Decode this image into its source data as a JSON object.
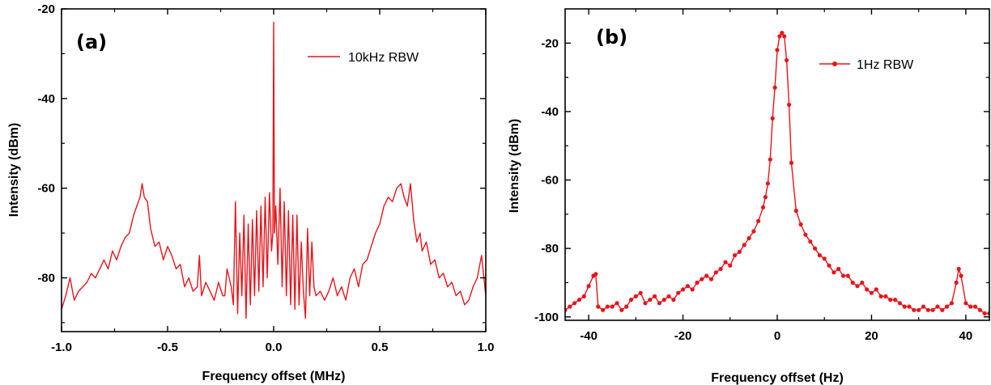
{
  "chart_data": [
    {
      "type": "line",
      "panel_label": "(a)",
      "xlabel": "Frequency offset (MHz)",
      "ylabel": "Intensity (dBm)",
      "xlim": [
        -1.0,
        1.0
      ],
      "ylim": [
        -92,
        -20
      ],
      "xticks": [
        -1.0,
        -0.5,
        0.0,
        0.5,
        1.0
      ],
      "xtick_labels": [
        "-1.0",
        "-0.5",
        "0.0",
        "0.5",
        "1.0"
      ],
      "yticks": [
        -80,
        -60,
        -40,
        -20
      ],
      "ytick_labels": [
        "-80",
        "-60",
        "-40",
        "-20"
      ],
      "grid": false,
      "legend_position": "top-right",
      "color": "#e8141b",
      "series": [
        {
          "name": "10kHz RBW",
          "markers": false,
          "x": [
            -1.0,
            -0.98,
            -0.96,
            -0.94,
            -0.92,
            -0.9,
            -0.88,
            -0.86,
            -0.84,
            -0.82,
            -0.8,
            -0.78,
            -0.76,
            -0.74,
            -0.72,
            -0.7,
            -0.68,
            -0.66,
            -0.645,
            -0.63,
            -0.62,
            -0.61,
            -0.595,
            -0.58,
            -0.56,
            -0.54,
            -0.52,
            -0.5,
            -0.48,
            -0.46,
            -0.44,
            -0.42,
            -0.4,
            -0.38,
            -0.36,
            -0.35,
            -0.34,
            -0.32,
            -0.3,
            -0.28,
            -0.26,
            -0.24,
            -0.23,
            -0.22,
            -0.2,
            -0.19,
            -0.18,
            -0.17,
            -0.16,
            -0.15,
            -0.14,
            -0.13,
            -0.12,
            -0.11,
            -0.1,
            -0.09,
            -0.08,
            -0.07,
            -0.06,
            -0.05,
            -0.04,
            -0.03,
            -0.02,
            -0.01,
            -0.004,
            0.0,
            0.004,
            0.01,
            0.02,
            0.03,
            0.04,
            0.05,
            0.06,
            0.07,
            0.08,
            0.09,
            0.1,
            0.11,
            0.12,
            0.13,
            0.14,
            0.15,
            0.16,
            0.17,
            0.18,
            0.19,
            0.2,
            0.22,
            0.24,
            0.26,
            0.28,
            0.3,
            0.32,
            0.34,
            0.36,
            0.38,
            0.4,
            0.42,
            0.44,
            0.46,
            0.48,
            0.5,
            0.52,
            0.54,
            0.56,
            0.58,
            0.6,
            0.615,
            0.63,
            0.645,
            0.66,
            0.675,
            0.69,
            0.7,
            0.72,
            0.74,
            0.76,
            0.78,
            0.8,
            0.82,
            0.84,
            0.86,
            0.88,
            0.9,
            0.92,
            0.94,
            0.96,
            0.98,
            1.0
          ],
          "y": [
            -87,
            -84,
            -80,
            -85,
            -83,
            -82,
            -81,
            -79,
            -80,
            -78,
            -76,
            -78,
            -74,
            -76,
            -73,
            -71,
            -70,
            -66,
            -64,
            -62,
            -59,
            -62,
            -63,
            -69,
            -73,
            -72,
            -76,
            -73,
            -75,
            -78,
            -77,
            -82,
            -80,
            -83,
            -82,
            -75,
            -84,
            -81,
            -83,
            -85,
            -81,
            -84,
            -84,
            -78,
            -82,
            -86,
            -63,
            -88,
            -70,
            -84,
            -66,
            -89,
            -68,
            -86,
            -67,
            -84,
            -65,
            -83,
            -64,
            -82,
            -62,
            -80,
            -61,
            -74,
            -70,
            -23,
            -70,
            -64,
            -77,
            -60,
            -82,
            -63,
            -84,
            -65,
            -86,
            -66,
            -87,
            -66,
            -86,
            -72,
            -83,
            -89,
            -69,
            -84,
            -72,
            -82,
            -84,
            -83,
            -85,
            -83,
            -80,
            -84,
            -82,
            -85,
            -80,
            -78,
            -82,
            -77,
            -76,
            -73,
            -70,
            -68,
            -64,
            -62,
            -63,
            -60,
            -59,
            -62,
            -64,
            -59,
            -67,
            -72,
            -70,
            -74,
            -72,
            -77,
            -76,
            -80,
            -79,
            -82,
            -81,
            -84,
            -83,
            -86,
            -85,
            -82,
            -80,
            -75,
            -84
          ]
        }
      ]
    },
    {
      "type": "line",
      "panel_label": "(b)",
      "xlabel": "Frequency offset (Hz)",
      "ylabel": "Intensity (dBm)",
      "xlim": [
        -45,
        45
      ],
      "ylim": [
        -101,
        -10
      ],
      "xticks": [
        -40,
        -20,
        0,
        20,
        40
      ],
      "xtick_labels": [
        "-40",
        "-20",
        "0",
        "20",
        "40"
      ],
      "yticks": [
        -100,
        -80,
        -60,
        -40,
        -20
      ],
      "ytick_labels": [
        "-100",
        "-80",
        "-60",
        "-40",
        "-20"
      ],
      "grid": false,
      "legend_position": "top-right",
      "color": "#e8141b",
      "series": [
        {
          "name": "1Hz RBW",
          "markers": true,
          "x": [
            -45,
            -44,
            -43,
            -42,
            -41,
            -40,
            -39,
            -38.5,
            -38,
            -37,
            -36,
            -35,
            -34,
            -33,
            -32,
            -31,
            -30,
            -29,
            -28,
            -27,
            -26,
            -25,
            -24,
            -23,
            -22,
            -21,
            -20,
            -19,
            -18,
            -17,
            -16,
            -15,
            -14,
            -13,
            -12,
            -11,
            -10,
            -9,
            -8,
            -7,
            -6,
            -5,
            -4,
            -3,
            -2.5,
            -2,
            -1.5,
            -1,
            -0.5,
            0,
            0.5,
            1,
            1.5,
            2,
            2.5,
            3,
            4,
            5,
            6,
            7,
            8,
            9,
            10,
            11,
            12,
            13,
            14,
            15,
            16,
            17,
            18,
            19,
            20,
            21,
            22,
            23,
            24,
            25,
            26,
            27,
            28,
            29,
            30,
            31,
            32,
            33,
            34,
            35,
            36,
            37,
            38,
            38.5,
            39,
            40,
            41,
            42,
            43,
            44,
            45
          ],
          "y": [
            -98,
            -97,
            -96,
            -95,
            -94,
            -91,
            -88,
            -87.5,
            -97,
            -98,
            -97,
            -97,
            -96,
            -98,
            -97,
            -95,
            -94,
            -93,
            -96,
            -95,
            -94,
            -96,
            -95,
            -94,
            -95,
            -93,
            -92,
            -91,
            -92,
            -90,
            -89,
            -88,
            -89,
            -87,
            -86,
            -84,
            -85,
            -82,
            -81,
            -79,
            -77,
            -75,
            -72,
            -68,
            -65,
            -61,
            -54,
            -42,
            -33,
            -22,
            -18,
            -17,
            -18,
            -25,
            -38,
            -55,
            -69,
            -73,
            -76,
            -78,
            -80,
            -82,
            -83,
            -85,
            -87,
            -86,
            -88,
            -88,
            -90,
            -91,
            -90,
            -92,
            -93,
            -92,
            -94,
            -94,
            -95,
            -95,
            -96,
            -97,
            -97,
            -98,
            -98,
            -97,
            -98,
            -98,
            -97,
            -98,
            -97,
            -96,
            -90,
            -86,
            -88,
            -96,
            -97,
            -97,
            -98,
            -99,
            -99
          ]
        }
      ]
    }
  ]
}
